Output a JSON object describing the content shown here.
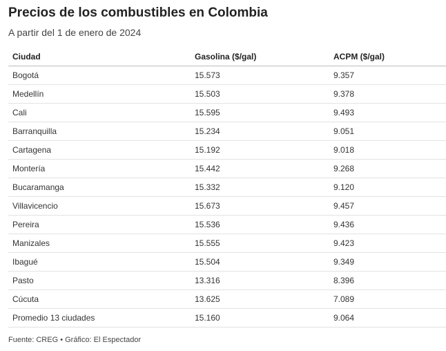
{
  "title": "Precios de los combustibles en Colombia",
  "subtitle": "A partir del 1 de enero de 2024",
  "source": "Fuente: CREG • Gráfico: El Espectador",
  "chart_data": {
    "type": "table",
    "title": "Precios de los combustibles en Colombia",
    "subtitle": "A partir del 1 de enero de 2024",
    "columns": [
      "Ciudad",
      "Gasolina ($/gal)",
      "ACPM ($/gal)"
    ],
    "rows": [
      [
        "Bogotá",
        "15.573",
        "9.357"
      ],
      [
        "Medellín",
        "15.503",
        "9.378"
      ],
      [
        "Cali",
        "15.595",
        "9.493"
      ],
      [
        "Barranquilla",
        "15.234",
        "9.051"
      ],
      [
        "Cartagena",
        "15.192",
        "9.018"
      ],
      [
        "Montería",
        "15.442",
        "9.268"
      ],
      [
        "Bucaramanga",
        "15.332",
        "9.120"
      ],
      [
        "Villavicencio",
        "15.673",
        "9.457"
      ],
      [
        "Pereira",
        "15.536",
        "9.436"
      ],
      [
        "Manizales",
        "15.555",
        "9.423"
      ],
      [
        "Ibagué",
        "15.504",
        "9.349"
      ],
      [
        "Pasto",
        "13.316",
        "8.396"
      ],
      [
        "Cúcuta",
        "13.625",
        "7.089"
      ],
      [
        "Promedio 13 ciudades",
        "15.160",
        "9.064"
      ]
    ],
    "source": "Fuente: CREG • Gráfico: El Espectador"
  }
}
